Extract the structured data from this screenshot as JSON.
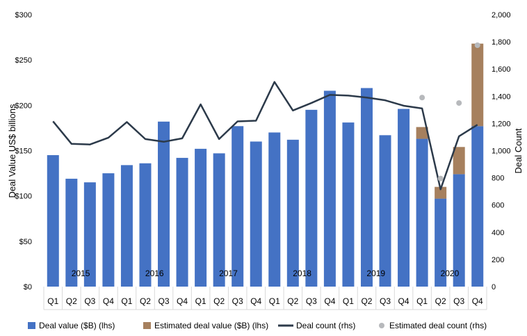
{
  "chart_data": {
    "type": "bar",
    "title": "",
    "ylabel_left": "Deal Value US$ billions",
    "ylabel_right": "Deal Count",
    "ylim_left": [
      0,
      300
    ],
    "ylim_right": [
      0,
      2000
    ],
    "yticks_left": [
      "$0",
      "$50",
      "$100",
      "$150",
      "$200",
      "$250",
      "$300"
    ],
    "yticks_right": [
      "0",
      "200",
      "400",
      "600",
      "800",
      "1,000",
      "1,200",
      "1,400",
      "1,600",
      "1,800",
      "2,000"
    ],
    "categories": [
      "Q1",
      "Q2",
      "Q3",
      "Q4",
      "Q1",
      "Q2",
      "Q3",
      "Q4",
      "Q1",
      "Q2",
      "Q3",
      "Q4",
      "Q1",
      "Q2",
      "Q3",
      "Q4",
      "Q1",
      "Q2",
      "Q3",
      "Q4",
      "Q1",
      "Q2",
      "Q3",
      "Q4"
    ],
    "years": [
      "2015",
      "2016",
      "2017",
      "2018",
      "2019",
      "2020"
    ],
    "series": [
      {
        "name": "Deal value ($B) (lhs)",
        "kind": "bar",
        "color": "#4472C4",
        "values": [
          145,
          119,
          115,
          125,
          134,
          136,
          182,
          142,
          152,
          147,
          177,
          160,
          170,
          162,
          195,
          216,
          181,
          219,
          167,
          196,
          163,
          97,
          124,
          177
        ]
      },
      {
        "name": "Estimated deal value ($B) (lhs)",
        "kind": "bar-stack",
        "color": "#A6805E",
        "values": [
          0,
          0,
          0,
          0,
          0,
          0,
          0,
          0,
          0,
          0,
          0,
          0,
          0,
          0,
          0,
          0,
          0,
          0,
          0,
          0,
          13,
          13,
          30,
          91
        ]
      },
      {
        "name": "Deal count (rhs)",
        "kind": "line",
        "color": "#2C3A4A",
        "values": [
          1215,
          1050,
          1045,
          1095,
          1210,
          1085,
          1065,
          1090,
          1340,
          1085,
          1215,
          1220,
          1505,
          1295,
          1350,
          1410,
          1405,
          1390,
          1370,
          1330,
          1310,
          715,
          1105,
          1190
        ]
      },
      {
        "name": "Estimated deal count (rhs)",
        "kind": "scatter",
        "color": "#B7B9BC",
        "values": [
          null,
          null,
          null,
          null,
          null,
          null,
          null,
          null,
          null,
          null,
          null,
          null,
          null,
          null,
          null,
          null,
          null,
          null,
          null,
          null,
          1390,
          795,
          1350,
          1775
        ]
      }
    ],
    "legend_position": "bottom",
    "grid": false
  }
}
